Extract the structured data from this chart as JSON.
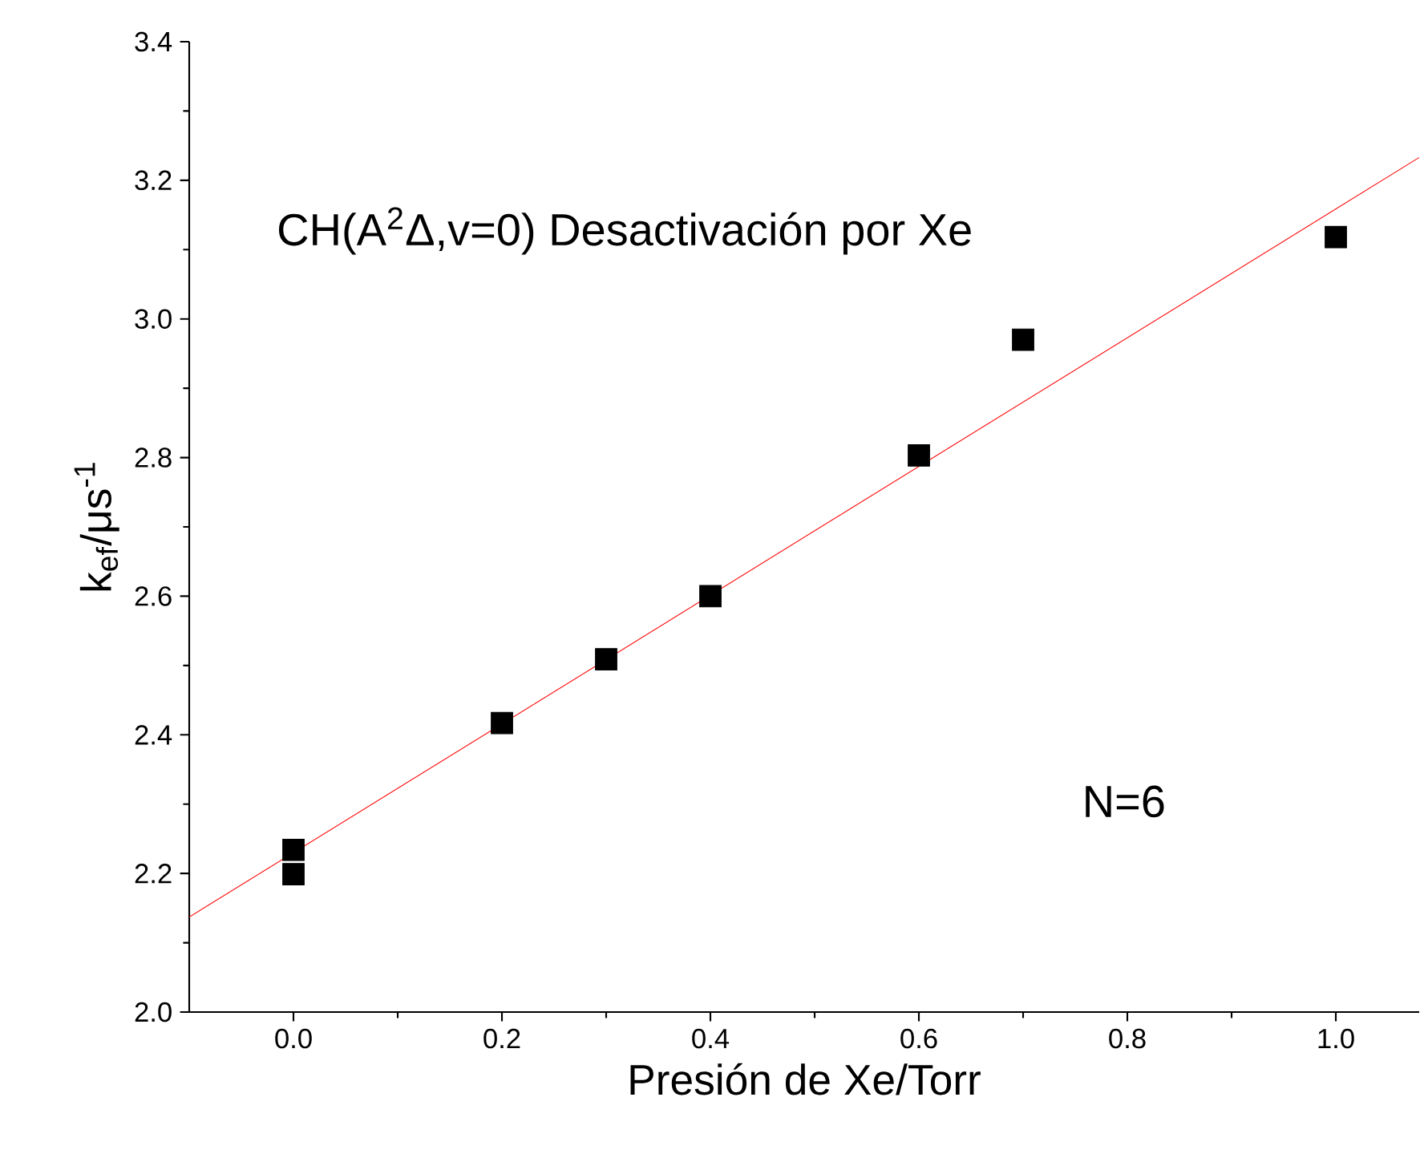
{
  "chart_data": {
    "type": "scatter",
    "xlabel": "Presión de Xe/Torr",
    "ylabel": "k$_{ef}$/μs$^{-1}$",
    "xlim": [
      -0.1,
      1.08
    ],
    "ylim": [
      2.0,
      3.4
    ],
    "xticks": [
      {
        "value": 0,
        "label": "0.0"
      },
      {
        "value": 0.2,
        "label": "0.2"
      },
      {
        "value": 0.4,
        "label": "0.4"
      },
      {
        "value": 0.6,
        "label": "0.6"
      },
      {
        "value": 0.8,
        "label": "0.8"
      },
      {
        "value": 1.0,
        "label": "1.0"
      }
    ],
    "yticks": [
      {
        "value": 2.0,
        "label": "2.0"
      },
      {
        "value": 2.2,
        "label": "2.2"
      },
      {
        "value": 2.4,
        "label": "2.4"
      },
      {
        "value": 2.6,
        "label": "2.6"
      },
      {
        "value": 2.8,
        "label": "2.8"
      },
      {
        "value": 3.0,
        "label": "3.0"
      },
      {
        "value": 3.2,
        "label": "3.2"
      },
      {
        "value": 3.4,
        "label": "3.4"
      }
    ],
    "marker": "square",
    "series": [
      {
        "color": "#000000",
        "x": [
          0,
          0,
          0.2,
          0.3,
          0.4,
          0.6,
          0.7,
          1.0
        ],
        "values": [
          2.234,
          2.199,
          2.417,
          2.509,
          2.6,
          2.803,
          2.97,
          3.118
        ]
      },
      {
        "type": "line",
        "color": "#ff0000",
        "marker": "none",
        "x": [
          -0.1,
          1.08
        ],
        "values": [
          2.137,
          3.233
        ]
      }
    ],
    "annotations": [
      "CH(A$^{2}$Δ,v=0) Desactivación por Xe",
      "N=6"
    ]
  }
}
